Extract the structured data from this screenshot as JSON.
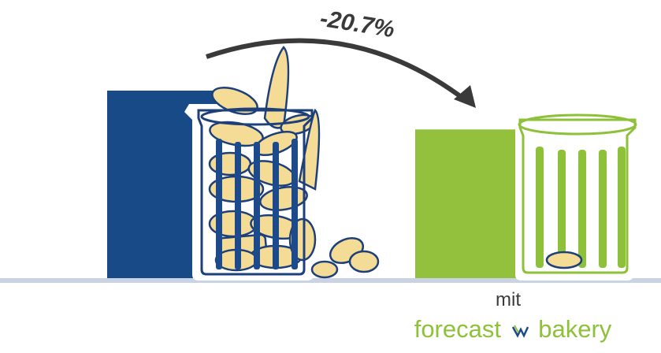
{
  "colors": {
    "before": "#174a86",
    "after": "#93c13d",
    "bread": "#f5dc96",
    "outline": "#1d3f7a",
    "arrow": "#3a3a3a",
    "baseline": "#c9d3e3"
  },
  "chart_data": {
    "type": "bar",
    "categories": [
      "",
      "mit forecast bakery"
    ],
    "values": [
      100,
      79.3
    ],
    "change_label": "-20.7%",
    "grid": false,
    "legend": "none"
  },
  "labels": {
    "after_prefix": "mit",
    "brand_word1": "forecast",
    "brand_word2": "bakery",
    "brand_icon": "wave-logo-icon"
  }
}
